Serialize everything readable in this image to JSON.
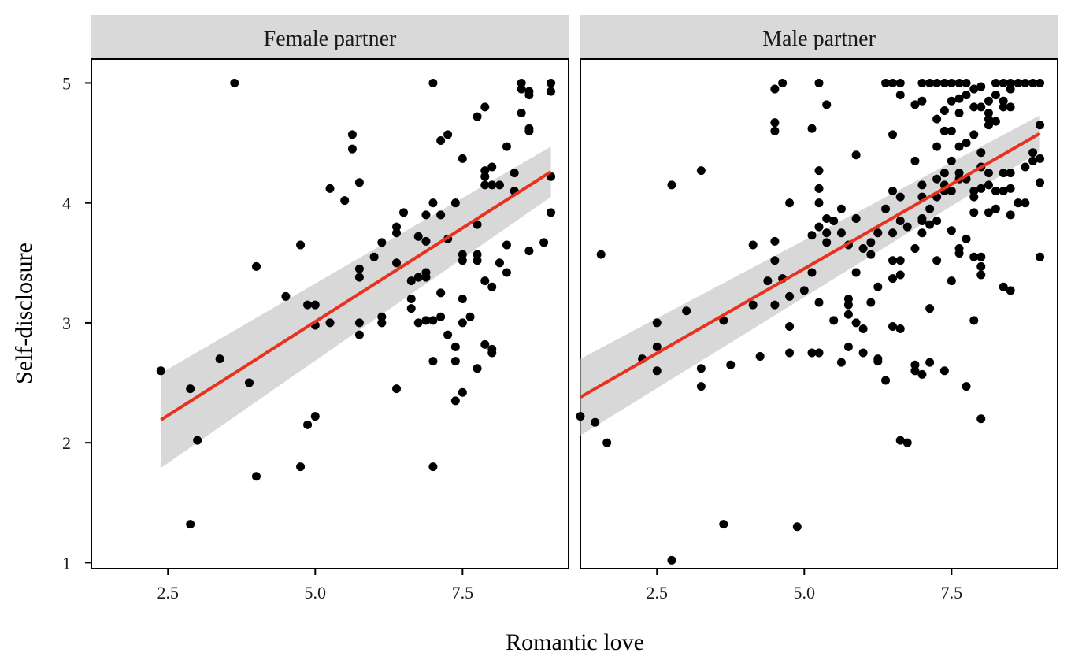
{
  "chart_data": {
    "type": "scatter",
    "xlabel": "Romantic love",
    "ylabel": "Self-disclosure",
    "xlim": [
      1.2,
      9.3
    ],
    "ylim": [
      0.95,
      5.2
    ],
    "x_ticks": [
      {
        "value": 2.5,
        "label": "2.5"
      },
      {
        "value": 5.0,
        "label": "5.0"
      },
      {
        "value": 7.5,
        "label": "7.5"
      }
    ],
    "y_ticks": [
      {
        "value": 1,
        "label": "1"
      },
      {
        "value": 2,
        "label": "2"
      },
      {
        "value": 3,
        "label": "3"
      },
      {
        "value": 4,
        "label": "4"
      },
      {
        "value": 5,
        "label": "5"
      }
    ],
    "grid": false,
    "colors": {
      "point": "#000000",
      "fit_line": "#e8321e",
      "ribbon": "#bebebe",
      "strip": "#d9d9d9"
    },
    "panels": [
      {
        "name": "Female partner",
        "fit": {
          "x": [
            2.38,
            9.0
          ],
          "y": [
            2.19,
            4.26
          ],
          "ci_lower": [
            1.79,
            4.05
          ],
          "ci_upper": [
            2.58,
            4.47
          ]
        },
        "points": [
          [
            2.38,
            2.6
          ],
          [
            2.88,
            2.45
          ],
          [
            2.88,
            1.32
          ],
          [
            3.0,
            2.02
          ],
          [
            3.38,
            2.7
          ],
          [
            3.63,
            5.0
          ],
          [
            3.88,
            2.5
          ],
          [
            4.0,
            3.47
          ],
          [
            4.0,
            1.72
          ],
          [
            4.5,
            3.22
          ],
          [
            4.75,
            3.65
          ],
          [
            4.75,
            1.8
          ],
          [
            4.87,
            3.15
          ],
          [
            4.87,
            2.15
          ],
          [
            5.0,
            3.15
          ],
          [
            5.0,
            2.98
          ],
          [
            5.0,
            2.22
          ],
          [
            5.25,
            4.12
          ],
          [
            5.25,
            3.0
          ],
          [
            5.5,
            4.02
          ],
          [
            5.63,
            4.57
          ],
          [
            5.63,
            4.45
          ],
          [
            5.75,
            4.17
          ],
          [
            5.75,
            3.45
          ],
          [
            5.75,
            3.38
          ],
          [
            5.75,
            3.0
          ],
          [
            5.75,
            2.9
          ],
          [
            6.0,
            3.55
          ],
          [
            6.13,
            3.67
          ],
          [
            6.13,
            3.05
          ],
          [
            6.13,
            3.0
          ],
          [
            6.38,
            3.8
          ],
          [
            6.38,
            3.75
          ],
          [
            6.38,
            3.5
          ],
          [
            6.38,
            2.45
          ],
          [
            6.5,
            3.92
          ],
          [
            6.63,
            3.35
          ],
          [
            6.63,
            3.2
          ],
          [
            6.63,
            3.12
          ],
          [
            6.75,
            3.72
          ],
          [
            6.75,
            3.38
          ],
          [
            6.75,
            3.0
          ],
          [
            6.88,
            3.9
          ],
          [
            6.88,
            3.68
          ],
          [
            6.88,
            3.42
          ],
          [
            6.88,
            3.38
          ],
          [
            6.88,
            3.02
          ],
          [
            7.0,
            5.0
          ],
          [
            7.0,
            4.0
          ],
          [
            7.0,
            3.02
          ],
          [
            7.0,
            2.68
          ],
          [
            7.0,
            1.8
          ],
          [
            7.13,
            4.52
          ],
          [
            7.13,
            3.9
          ],
          [
            7.13,
            3.25
          ],
          [
            7.13,
            3.05
          ],
          [
            7.25,
            4.57
          ],
          [
            7.25,
            3.7
          ],
          [
            7.25,
            2.9
          ],
          [
            7.38,
            4.0
          ],
          [
            7.38,
            2.8
          ],
          [
            7.38,
            2.68
          ],
          [
            7.38,
            2.35
          ],
          [
            7.5,
            4.37
          ],
          [
            7.5,
            3.57
          ],
          [
            7.5,
            3.52
          ],
          [
            7.5,
            3.2
          ],
          [
            7.5,
            3.0
          ],
          [
            7.5,
            2.42
          ],
          [
            7.63,
            3.05
          ],
          [
            7.75,
            4.72
          ],
          [
            7.75,
            3.82
          ],
          [
            7.75,
            3.57
          ],
          [
            7.75,
            3.52
          ],
          [
            7.75,
            2.62
          ],
          [
            7.88,
            4.8
          ],
          [
            7.88,
            4.27
          ],
          [
            7.88,
            4.22
          ],
          [
            7.88,
            4.15
          ],
          [
            7.88,
            3.35
          ],
          [
            7.88,
            2.82
          ],
          [
            8.0,
            4.3
          ],
          [
            8.0,
            4.15
          ],
          [
            8.0,
            3.3
          ],
          [
            8.0,
            2.78
          ],
          [
            8.0,
            2.75
          ],
          [
            8.13,
            4.15
          ],
          [
            8.13,
            3.5
          ],
          [
            8.25,
            4.47
          ],
          [
            8.25,
            3.65
          ],
          [
            8.25,
            3.42
          ],
          [
            8.38,
            4.25
          ],
          [
            8.38,
            4.1
          ],
          [
            8.5,
            5.0
          ],
          [
            8.5,
            4.95
          ],
          [
            8.5,
            4.75
          ],
          [
            8.63,
            4.93
          ],
          [
            8.63,
            4.9
          ],
          [
            8.63,
            4.62
          ],
          [
            8.63,
            4.6
          ],
          [
            8.63,
            3.6
          ],
          [
            8.88,
            3.67
          ],
          [
            9.0,
            5.0
          ],
          [
            9.0,
            4.93
          ],
          [
            9.0,
            4.22
          ],
          [
            9.0,
            3.92
          ]
        ]
      },
      {
        "name": "Male partner",
        "fit": {
          "x": [
            1.2,
            9.0
          ],
          "y": [
            2.38,
            4.58
          ],
          "ci_lower": [
            2.06,
            4.43
          ],
          "ci_upper": [
            2.7,
            4.73
          ]
        },
        "points": [
          [
            1.2,
            2.22
          ],
          [
            1.45,
            2.17
          ],
          [
            1.55,
            3.57
          ],
          [
            1.65,
            2.0
          ],
          [
            2.25,
            2.7
          ],
          [
            2.5,
            3.0
          ],
          [
            2.5,
            2.8
          ],
          [
            2.5,
            2.6
          ],
          [
            2.75,
            4.15
          ],
          [
            2.75,
            1.02
          ],
          [
            3.0,
            3.1
          ],
          [
            3.25,
            4.27
          ],
          [
            3.25,
            2.62
          ],
          [
            3.25,
            2.47
          ],
          [
            3.63,
            3.02
          ],
          [
            3.63,
            1.32
          ],
          [
            3.75,
            2.65
          ],
          [
            4.13,
            3.65
          ],
          [
            4.13,
            3.15
          ],
          [
            4.25,
            2.72
          ],
          [
            4.38,
            3.35
          ],
          [
            4.5,
            4.95
          ],
          [
            4.5,
            4.67
          ],
          [
            4.5,
            4.6
          ],
          [
            4.5,
            3.68
          ],
          [
            4.5,
            3.52
          ],
          [
            4.5,
            3.15
          ],
          [
            4.63,
            5.0
          ],
          [
            4.63,
            3.37
          ],
          [
            4.75,
            4.0
          ],
          [
            4.75,
            3.22
          ],
          [
            4.75,
            2.97
          ],
          [
            4.75,
            2.75
          ],
          [
            4.88,
            1.3
          ],
          [
            5.0,
            3.27
          ],
          [
            5.13,
            4.62
          ],
          [
            5.13,
            3.73
          ],
          [
            5.13,
            3.42
          ],
          [
            5.13,
            2.75
          ],
          [
            5.25,
            5.0
          ],
          [
            5.25,
            4.27
          ],
          [
            5.25,
            4.12
          ],
          [
            5.25,
            4.0
          ],
          [
            5.25,
            3.8
          ],
          [
            5.25,
            3.17
          ],
          [
            5.25,
            2.75
          ],
          [
            5.38,
            4.82
          ],
          [
            5.38,
            3.87
          ],
          [
            5.38,
            3.75
          ],
          [
            5.38,
            3.67
          ],
          [
            5.5,
            3.85
          ],
          [
            5.5,
            3.02
          ],
          [
            5.63,
            3.95
          ],
          [
            5.63,
            3.75
          ],
          [
            5.63,
            2.67
          ],
          [
            5.75,
            3.65
          ],
          [
            5.75,
            3.2
          ],
          [
            5.75,
            3.15
          ],
          [
            5.75,
            3.07
          ],
          [
            5.75,
            2.8
          ],
          [
            5.88,
            4.4
          ],
          [
            5.88,
            3.87
          ],
          [
            5.88,
            3.42
          ],
          [
            5.88,
            3.0
          ],
          [
            6.0,
            3.62
          ],
          [
            6.0,
            2.95
          ],
          [
            6.0,
            2.75
          ],
          [
            6.13,
            3.67
          ],
          [
            6.13,
            3.57
          ],
          [
            6.13,
            3.17
          ],
          [
            6.25,
            3.75
          ],
          [
            6.25,
            3.3
          ],
          [
            6.25,
            2.7
          ],
          [
            6.25,
            2.68
          ],
          [
            6.38,
            5.0
          ],
          [
            6.38,
            3.95
          ],
          [
            6.38,
            2.52
          ],
          [
            6.5,
            5.0
          ],
          [
            6.5,
            4.57
          ],
          [
            6.5,
            4.1
          ],
          [
            6.5,
            3.75
          ],
          [
            6.5,
            3.52
          ],
          [
            6.5,
            3.37
          ],
          [
            6.5,
            2.97
          ],
          [
            6.63,
            5.0
          ],
          [
            6.63,
            4.9
          ],
          [
            6.63,
            4.05
          ],
          [
            6.63,
            3.85
          ],
          [
            6.63,
            3.52
          ],
          [
            6.63,
            3.4
          ],
          [
            6.63,
            2.95
          ],
          [
            6.63,
            2.02
          ],
          [
            6.75,
            3.8
          ],
          [
            6.75,
            2.0
          ],
          [
            6.88,
            4.82
          ],
          [
            6.88,
            4.35
          ],
          [
            6.88,
            3.62
          ],
          [
            6.88,
            2.65
          ],
          [
            6.88,
            2.6
          ],
          [
            7.0,
            5.0
          ],
          [
            7.0,
            4.85
          ],
          [
            7.0,
            4.15
          ],
          [
            7.0,
            4.05
          ],
          [
            7.0,
            3.87
          ],
          [
            7.0,
            3.85
          ],
          [
            7.0,
            3.75
          ],
          [
            7.0,
            2.57
          ],
          [
            7.13,
            5.0
          ],
          [
            7.13,
            3.95
          ],
          [
            7.13,
            3.82
          ],
          [
            7.13,
            3.12
          ],
          [
            7.13,
            2.67
          ],
          [
            7.25,
            5.0
          ],
          [
            7.25,
            4.7
          ],
          [
            7.25,
            4.47
          ],
          [
            7.25,
            4.2
          ],
          [
            7.25,
            4.05
          ],
          [
            7.25,
            3.85
          ],
          [
            7.25,
            3.52
          ],
          [
            7.38,
            5.0
          ],
          [
            7.38,
            4.77
          ],
          [
            7.38,
            4.6
          ],
          [
            7.38,
            4.25
          ],
          [
            7.38,
            4.15
          ],
          [
            7.38,
            4.1
          ],
          [
            7.38,
            2.6
          ],
          [
            7.5,
            5.0
          ],
          [
            7.5,
            4.85
          ],
          [
            7.5,
            4.6
          ],
          [
            7.5,
            4.35
          ],
          [
            7.5,
            4.1
          ],
          [
            7.5,
            3.77
          ],
          [
            7.5,
            3.35
          ],
          [
            7.63,
            5.0
          ],
          [
            7.63,
            4.87
          ],
          [
            7.63,
            4.75
          ],
          [
            7.63,
            4.47
          ],
          [
            7.63,
            4.25
          ],
          [
            7.63,
            4.2
          ],
          [
            7.63,
            3.62
          ],
          [
            7.63,
            3.58
          ],
          [
            7.75,
            5.0
          ],
          [
            7.75,
            4.9
          ],
          [
            7.75,
            4.5
          ],
          [
            7.75,
            4.2
          ],
          [
            7.75,
            3.7
          ],
          [
            7.75,
            2.47
          ],
          [
            7.88,
            4.95
          ],
          [
            7.88,
            4.8
          ],
          [
            7.88,
            4.57
          ],
          [
            7.88,
            4.1
          ],
          [
            7.88,
            4.05
          ],
          [
            7.88,
            3.92
          ],
          [
            7.88,
            3.55
          ],
          [
            7.88,
            3.02
          ],
          [
            8.0,
            4.97
          ],
          [
            8.0,
            4.8
          ],
          [
            8.0,
            4.42
          ],
          [
            8.0,
            4.3
          ],
          [
            8.0,
            4.12
          ],
          [
            8.0,
            3.55
          ],
          [
            8.0,
            3.47
          ],
          [
            8.0,
            3.4
          ],
          [
            8.0,
            2.2
          ],
          [
            8.13,
            4.85
          ],
          [
            8.13,
            4.75
          ],
          [
            8.13,
            4.7
          ],
          [
            8.13,
            4.65
          ],
          [
            8.13,
            4.25
          ],
          [
            8.13,
            4.15
          ],
          [
            8.13,
            3.92
          ],
          [
            8.25,
            5.0
          ],
          [
            8.25,
            4.9
          ],
          [
            8.25,
            4.68
          ],
          [
            8.25,
            4.1
          ],
          [
            8.25,
            3.95
          ],
          [
            8.38,
            5.0
          ],
          [
            8.38,
            4.85
          ],
          [
            8.38,
            4.8
          ],
          [
            8.38,
            4.25
          ],
          [
            8.38,
            4.1
          ],
          [
            8.38,
            3.3
          ],
          [
            8.5,
            5.0
          ],
          [
            8.5,
            4.95
          ],
          [
            8.5,
            4.8
          ],
          [
            8.5,
            4.25
          ],
          [
            8.5,
            4.12
          ],
          [
            8.5,
            3.9
          ],
          [
            8.5,
            3.27
          ],
          [
            8.63,
            5.0
          ],
          [
            8.63,
            4.0
          ],
          [
            8.75,
            5.0
          ],
          [
            8.75,
            4.3
          ],
          [
            8.75,
            4.0
          ],
          [
            8.88,
            5.0
          ],
          [
            8.88,
            4.42
          ],
          [
            8.88,
            4.35
          ],
          [
            9.0,
            5.0
          ],
          [
            9.0,
            4.65
          ],
          [
            9.0,
            4.37
          ],
          [
            9.0,
            4.17
          ],
          [
            9.0,
            3.55
          ]
        ]
      }
    ]
  }
}
